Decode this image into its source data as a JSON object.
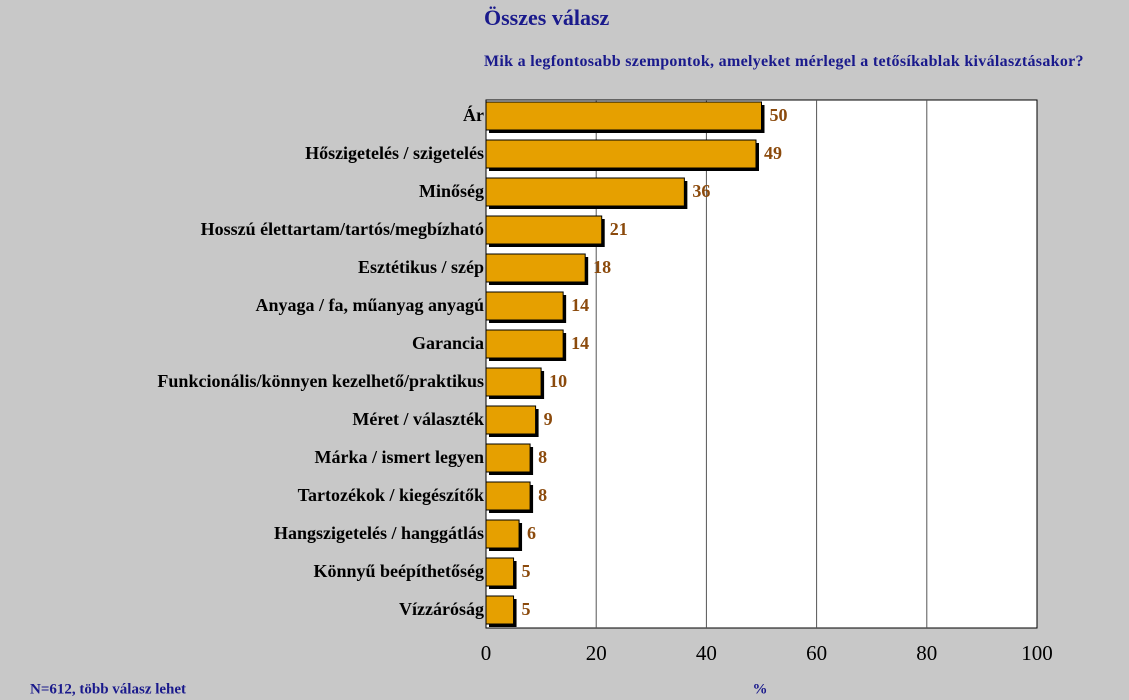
{
  "chart_data": {
    "type": "bar",
    "orientation": "horizontal",
    "title": "Összes válasz",
    "subtitle": "Mik a legfontosabb szempontok, amelyeket mérlegel a tetősíkablak kiválasztásakor?",
    "categories": [
      "Ár",
      "Hőszigetelés / szigetelés",
      "Minőség",
      "Hosszú élettartam/tartós/megbízható",
      "Esztétikus / szép",
      "Anyaga / fa, műanyag anyagú",
      "Garancia",
      "Funkcionális/könnyen kezelhető/praktikus",
      "Méret / választék",
      "Márka / ismert legyen",
      "Tartozékok / kiegészítők",
      "Hangszigetelés / hanggátlás",
      "Könnyű beépíthetőség",
      "Vízzáróság"
    ],
    "values": [
      50,
      49,
      36,
      21,
      18,
      14,
      14,
      10,
      9,
      8,
      8,
      6,
      5,
      5
    ],
    "color": "#e6a000",
    "xlim": [
      0,
      100
    ],
    "xticks": [
      0,
      20,
      40,
      60,
      80,
      100
    ],
    "grid": true,
    "xlabel": "%",
    "note": "N=612, több válasz lehet"
  }
}
